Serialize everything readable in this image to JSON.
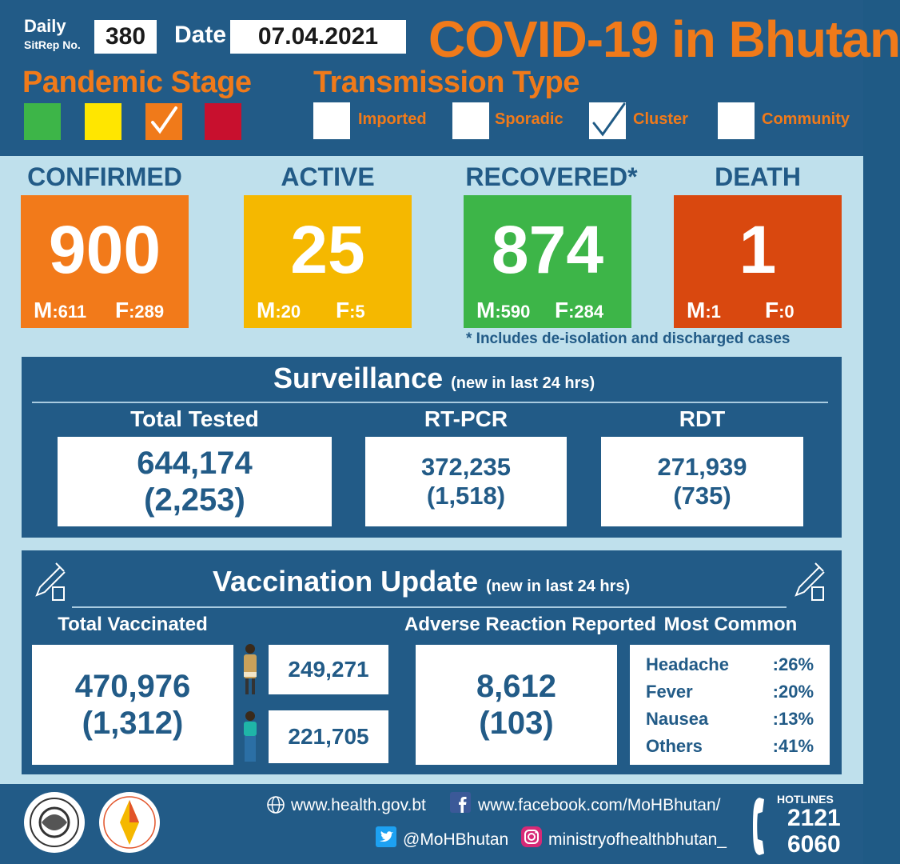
{
  "header": {
    "daily_label": "Daily",
    "sitrep_label": "SitRep No.",
    "sitrep_number": "380",
    "date_label": "Date",
    "date_value": "07.04.2021",
    "title": "COVID-19 in Bhutan",
    "pandemic_stage_title": "Pandemic Stage",
    "pandemic_stage": {
      "levels": [
        "green",
        "yellow",
        "orange",
        "red"
      ],
      "colors": [
        "#3db548",
        "#ffe600",
        "#f07a1a",
        "#c8102e"
      ],
      "current": "orange"
    },
    "transmission_title": "Transmission Type",
    "transmission_types": [
      {
        "label": "Imported",
        "checked": false
      },
      {
        "label": "Sporadic",
        "checked": false
      },
      {
        "label": "Cluster",
        "checked": true
      },
      {
        "label": "Community",
        "checked": false
      }
    ]
  },
  "stats": {
    "confirmed": {
      "label": "CONFIRMED",
      "value": "900",
      "m_label": "M",
      "m": ":611",
      "f_label": "F",
      "f": ":289",
      "color": "#f27a1a"
    },
    "active": {
      "label": "ACTIVE",
      "value": "25",
      "m_label": "M",
      "m": ":20",
      "f_label": "F",
      "f": ":5",
      "color": "#f5b800"
    },
    "recovered": {
      "label": "RECOVERED*",
      "value": "874",
      "m_label": "M",
      "m": ":590",
      "f_label": "F",
      "f": ":284",
      "color": "#3db548"
    },
    "death": {
      "label": "DEATH",
      "value": "1",
      "m_label": "M",
      "m": ":1",
      "f_label": "F",
      "f": ":0",
      "color": "#d9480f"
    },
    "footnote": "* Includes de-isolation and discharged cases"
  },
  "surveillance": {
    "title": "Surveillance",
    "subtitle": "(new in last 24 hrs)",
    "total_tested": {
      "label": "Total Tested",
      "value": "644,174",
      "new": "(2,253)"
    },
    "rt_pcr": {
      "label": "RT-PCR",
      "value": "372,235",
      "new": "(1,518)"
    },
    "rdt": {
      "label": "RDT",
      "value": "271,939",
      "new": "(735)"
    }
  },
  "vaccination": {
    "title": "Vaccination Update",
    "subtitle": "(new in last 24 hrs)",
    "total_vaccinated": {
      "label": "Total Vaccinated",
      "value": "470,976",
      "new": "(1,312)"
    },
    "male": "249,271",
    "female": "221,705",
    "adverse": {
      "label": "Adverse Reaction Reported",
      "value": "8,612",
      "new": "(103)"
    },
    "most_common": {
      "label": "Most Common",
      "items": [
        {
          "name": "Headache",
          "pct": ":26%"
        },
        {
          "name": "Fever",
          "pct": ":20%"
        },
        {
          "name": "Nausea",
          "pct": ":13%"
        },
        {
          "name": "Others",
          "pct": ":41%"
        }
      ]
    }
  },
  "footer": {
    "website": "www.health.gov.bt",
    "facebook": "www.facebook.com/MoHBhutan/",
    "twitter": "@MoHBhutan",
    "instagram": "ministryofhealthbhutan_",
    "hotlines_label": "HOTLINES",
    "hotline_1": "2121",
    "hotline_2": "6060"
  }
}
